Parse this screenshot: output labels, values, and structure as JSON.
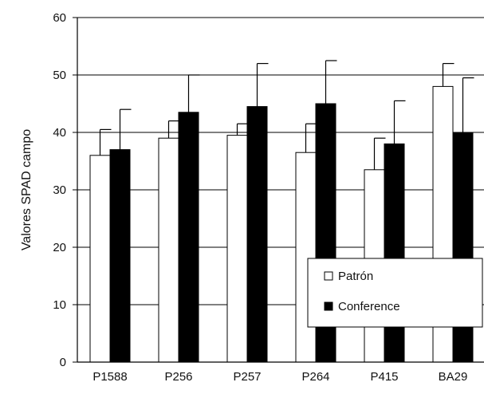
{
  "chart_data": {
    "type": "bar",
    "title": "",
    "xlabel": "",
    "ylabel": "Valores SPAD campo",
    "ylim": [
      0,
      60
    ],
    "yticks": [
      0,
      10,
      20,
      30,
      40,
      50,
      60
    ],
    "grid": true,
    "legend_position": "bottom-right",
    "categories": [
      "P1588",
      "P256",
      "P257",
      "P264",
      "P415",
      "BA29"
    ],
    "series": [
      {
        "name": "Patrón",
        "color": "#ffffff",
        "values": [
          36,
          39,
          39.5,
          36.5,
          33.5,
          48
        ],
        "error": [
          4.5,
          3,
          2,
          5,
          5.5,
          4
        ]
      },
      {
        "name": "Conference",
        "color": "#000000",
        "values": [
          37,
          43.5,
          44.5,
          45,
          38,
          40
        ],
        "error": [
          7,
          6.5,
          7.5,
          7.5,
          7.5,
          9.5
        ]
      }
    ]
  }
}
